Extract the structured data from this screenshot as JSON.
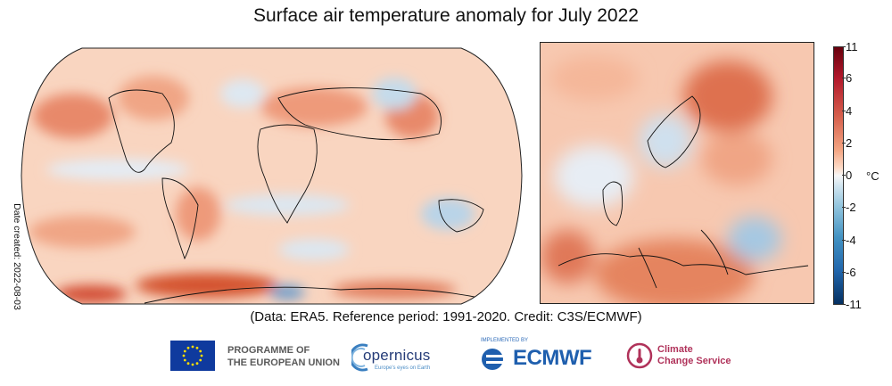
{
  "title": "Surface air temperature anomaly for July 2022",
  "date_created": "Date created: 2022-08-03",
  "caption": "(Data: ERA5.  Reference period: 1991-2020.  Credit: C3S/ECMWF)",
  "colorbar": {
    "unit": "°C",
    "ticks": [
      "11",
      "6",
      "4",
      "2",
      "0",
      "-2",
      "-4",
      "-6",
      "-11"
    ],
    "colors": [
      "#67000d",
      "#b2182b",
      "#d6604d",
      "#f4a582",
      "#fddbc7",
      "#f7f7f7",
      "#d1e5f0",
      "#92c5de",
      "#4393c3",
      "#2166ac",
      "#053061"
    ]
  },
  "logos": {
    "eu_line1": "PROGRAMME OF",
    "eu_line2": "THE EUROPEAN UNION",
    "copernicus_word": "opernicus",
    "copernicus_tag": "Europe's eyes on Earth",
    "ecmwf_small": "IMPLEMENTED BY",
    "ecmwf_word": "ECMWF",
    "c3s_line1": "Climate",
    "c3s_line2": "Change Service"
  },
  "icons": [
    "eu-flag-icon",
    "copernicus-icon",
    "ecmwf-icon",
    "thermometer-icon"
  ]
}
